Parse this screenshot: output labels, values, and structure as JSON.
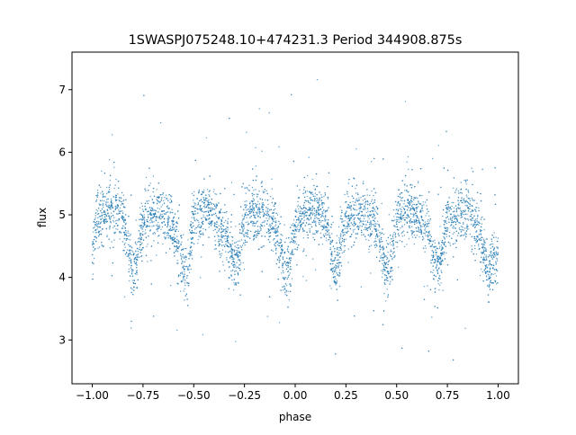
{
  "chart_data": {
    "type": "scatter",
    "title": "1SWASPJ075248.10+474231.3 Period 344908.875s",
    "xlabel": "phase",
    "ylabel": "flux",
    "xlim": [
      -1.1,
      1.1
    ],
    "ylim": [
      2.3,
      7.6
    ],
    "xticks": [
      -1.0,
      -0.75,
      -0.5,
      -0.25,
      0.0,
      0.25,
      0.5,
      0.75,
      1.0
    ],
    "xtick_labels": [
      "−1.00",
      "−0.75",
      "−0.50",
      "−0.25",
      "0.00",
      "0.25",
      "0.50",
      "0.75",
      "1.00"
    ],
    "yticks": [
      3,
      4,
      5,
      6,
      7
    ],
    "ytick_labels": [
      "3",
      "4",
      "5",
      "6",
      "7"
    ],
    "grid": false,
    "legend": "none",
    "marker_color": "#1f77b4",
    "series": [
      {
        "phase_pattern": {
          "x": [
            -1.0,
            -0.98,
            -0.95,
            -0.9,
            -0.85,
            -0.8,
            -0.78,
            -0.75,
            -0.7,
            -0.65,
            -0.6,
            -0.55,
            -0.53,
            -0.5,
            -0.45,
            -0.4,
            -0.35,
            -0.3,
            -0.28,
            -0.25,
            -0.2,
            -0.15,
            -0.1,
            -0.05,
            -0.03,
            0.0,
            0.05,
            0.1,
            0.15,
            0.2,
            0.22,
            0.25,
            0.3,
            0.35,
            0.4,
            0.45,
            0.47,
            0.5,
            0.55,
            0.6,
            0.65,
            0.7,
            0.72,
            0.75,
            0.8,
            0.85,
            0.9,
            0.95,
            0.97,
            1.0
          ],
          "y": [
            4.35,
            4.9,
            5.0,
            5.05,
            4.95,
            4.05,
            4.3,
            4.9,
            5.0,
            5.0,
            4.8,
            4.1,
            4.15,
            4.95,
            5.05,
            5.0,
            4.7,
            4.15,
            4.3,
            4.95,
            5.05,
            5.0,
            4.8,
            4.1,
            4.15,
            4.9,
            5.0,
            5.05,
            4.95,
            4.05,
            4.3,
            4.95,
            5.05,
            5.0,
            4.8,
            4.1,
            4.2,
            5.0,
            5.1,
            5.0,
            4.75,
            4.15,
            4.3,
            4.95,
            5.05,
            5.0,
            4.8,
            4.1,
            4.15,
            4.35
          ]
        }
      }
    ]
  }
}
